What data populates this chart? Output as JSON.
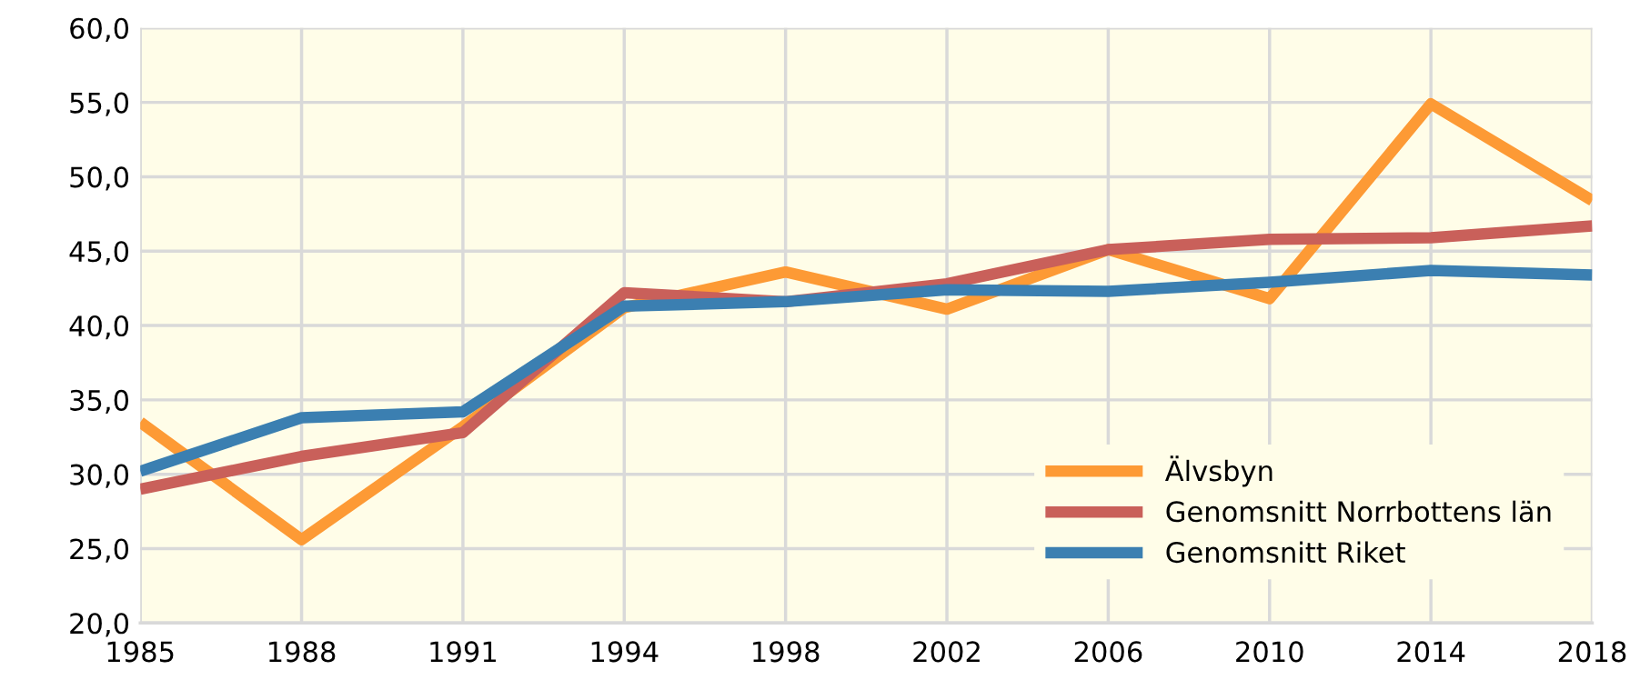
{
  "chart_data": {
    "type": "line",
    "categories": [
      "1985",
      "1988",
      "1991",
      "1994",
      "1998",
      "2002",
      "2006",
      "2010",
      "2014",
      "2018"
    ],
    "series": [
      {
        "name": "Älvsbyn",
        "color": "#fd9a35",
        "values": [
          33.5,
          25.6,
          33.2,
          41.2,
          43.6,
          41.1,
          45.1,
          41.8,
          54.9,
          48.4
        ]
      },
      {
        "name": "Genomsnitt Norrbottens län",
        "color": "#c9605a",
        "values": [
          29.0,
          31.2,
          32.8,
          42.2,
          41.6,
          42.8,
          45.1,
          45.8,
          45.9,
          46.7
        ]
      },
      {
        "name": "Genomsnitt Riket",
        "color": "#3b7fb1",
        "values": [
          30.2,
          33.8,
          34.2,
          41.3,
          41.6,
          42.4,
          42.3,
          42.9,
          43.7,
          43.4
        ]
      }
    ],
    "ylim": [
      20,
      60
    ],
    "yticks": [
      {
        "value": 20,
        "label": "20,0"
      },
      {
        "value": 25,
        "label": "25,0"
      },
      {
        "value": 30,
        "label": "30,0"
      },
      {
        "value": 35,
        "label": "35,0"
      },
      {
        "value": 40,
        "label": "40,0"
      },
      {
        "value": 45,
        "label": "45,0"
      },
      {
        "value": 50,
        "label": "50,0"
      },
      {
        "value": 55,
        "label": "55,0"
      },
      {
        "value": 60,
        "label": "60,0"
      }
    ],
    "grid": true,
    "legend": "bottom right",
    "marker": "none",
    "line_style": "solid"
  }
}
